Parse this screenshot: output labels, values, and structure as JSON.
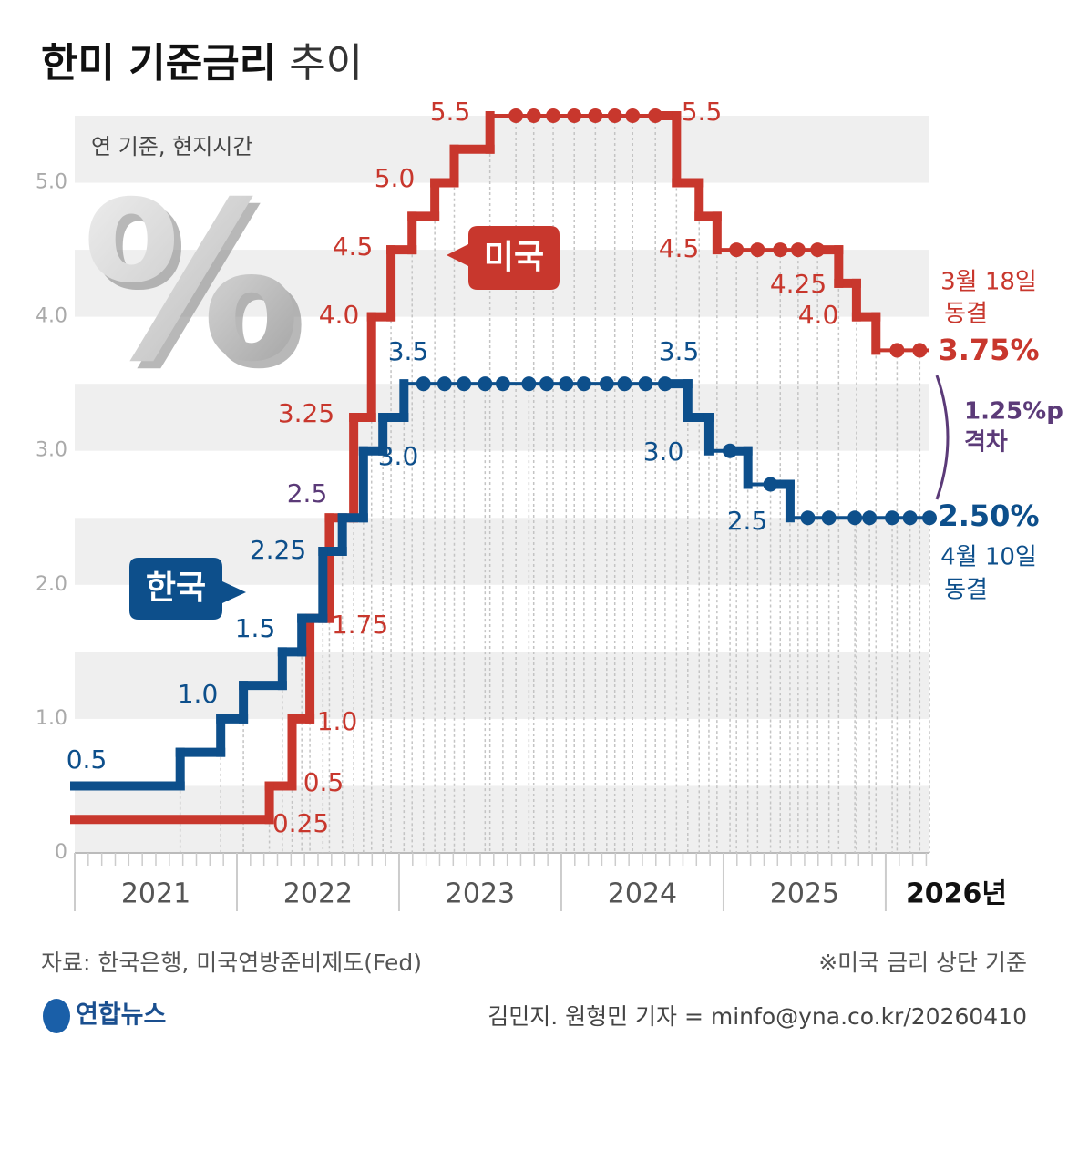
{
  "chart_data": {
    "type": "step",
    "title": "한미 기준금리",
    "title_light": "추이",
    "subtitle": "연 기준, 현지시간",
    "decoration_text": "%",
    "xlim": [
      2021,
      2026.27
    ],
    "xticks": [
      2021,
      2022,
      2023,
      2024,
      2025,
      {
        "value": 2026,
        "label": "2026년"
      }
    ],
    "ylim": [
      0,
      5.5
    ],
    "yticks": [
      0,
      {
        "value": 1,
        "label": "1.0"
      },
      {
        "value": 2,
        "label": "2.0"
      },
      {
        "value": 3,
        "label": "3.0"
      },
      {
        "value": 4,
        "label": "4.0"
      },
      {
        "value": 5,
        "label": "5.0"
      }
    ],
    "series": [
      {
        "name": "미국",
        "color": "#c8372d",
        "x": [
          2021.0,
          2022.2,
          2022.34,
          2022.45,
          2022.57,
          2022.72,
          2022.83,
          2022.95,
          2023.08,
          2023.22,
          2023.34,
          2023.56,
          2023.72,
          2023.83,
          2023.95,
          2024.08,
          2024.21,
          2024.33,
          2024.44,
          2024.58,
          2024.71,
          2024.85,
          2024.96,
          2025.08,
          2025.21,
          2025.35,
          2025.46,
          2025.58,
          2025.71,
          2025.82,
          2025.94,
          2026.07,
          2026.21
        ],
        "values": [
          0.25,
          0.5,
          1,
          1.75,
          2.5,
          3.25,
          4,
          4.5,
          4.75,
          5,
          5.25,
          5.5,
          5.5,
          5.5,
          5.5,
          5.5,
          5.5,
          5.5,
          5.5,
          5.5,
          5,
          4.75,
          4.5,
          4.5,
          4.5,
          4.5,
          4.5,
          4.5,
          4.25,
          4,
          3.75,
          3.75,
          3.75
        ],
        "value_labels": [
          "0.25",
          "0.5",
          "1.0",
          "1.75",
          "2.5",
          "3.25",
          "4.0",
          "4.5",
          null,
          "5.0",
          null,
          "5.5",
          null,
          null,
          null,
          null,
          null,
          null,
          null,
          "5.5",
          null,
          null,
          "4.5",
          null,
          null,
          null,
          null,
          null,
          "4.25",
          "4.0",
          null,
          null,
          "3.75%"
        ]
      },
      {
        "name": "한국",
        "color": "#0d4f8b",
        "x": [
          2021.0,
          2021.65,
          2021.9,
          2022.04,
          2022.28,
          2022.4,
          2022.53,
          2022.65,
          2022.78,
          2022.9,
          2023.03,
          2023.15,
          2023.28,
          2023.4,
          2023.53,
          2023.64,
          2023.8,
          2023.91,
          2024.03,
          2024.14,
          2024.28,
          2024.39,
          2024.52,
          2024.64,
          2024.78,
          2024.91,
          2025.04,
          2025.15,
          2025.29,
          2025.41,
          2025.52,
          2025.65,
          2025.81,
          2025.9,
          2026.04,
          2026.15,
          2026.27
        ],
        "values": [
          0.5,
          0.75,
          1,
          1.25,
          1.5,
          1.75,
          2.25,
          2.5,
          3,
          3.25,
          3.5,
          3.5,
          3.5,
          3.5,
          3.5,
          3.5,
          3.5,
          3.5,
          3.5,
          3.5,
          3.5,
          3.5,
          3.5,
          3.5,
          3.25,
          3,
          3,
          2.75,
          2.75,
          2.5,
          2.5,
          2.5,
          2.5,
          2.5,
          2.5,
          2.5,
          2.5
        ],
        "value_labels": [
          "0.5",
          null,
          "1.0",
          null,
          "1.5",
          null,
          "2.25",
          null,
          "3.0",
          null,
          "3.5",
          null,
          null,
          null,
          null,
          null,
          null,
          null,
          null,
          null,
          null,
          null,
          null,
          "3.5",
          null,
          "3.0",
          null,
          null,
          null,
          "2.5",
          null,
          null,
          null,
          null,
          null,
          null,
          "2.50%"
        ]
      }
    ],
    "us_note": [
      "3월 18일",
      "동결"
    ],
    "kr_note": [
      "4월 10일",
      "동결"
    ],
    "gap_note": [
      "1.25%p",
      "격차"
    ],
    "source": "자료: 한국은행, 미국연방준비제도(Fed)",
    "footnote": "※미국 금리 상단 기준",
    "logo": "연합뉴스",
    "credit": "김민지. 원형민 기자 = minfo@yna.co.kr/20260410"
  }
}
